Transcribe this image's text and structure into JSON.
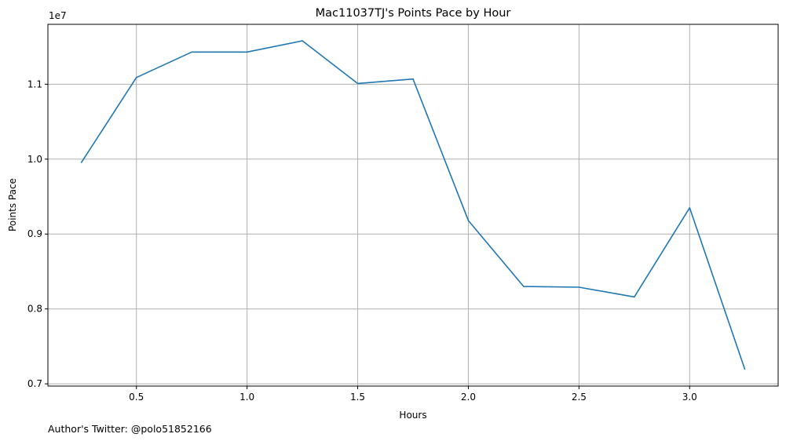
{
  "chart_data": {
    "type": "line",
    "title": "Mac11037TJ's Points Pace by Hour",
    "xlabel": "Hours",
    "ylabel": "Points Pace",
    "y_offset_text": "1e7",
    "grid": true,
    "xlim": [
      0.1,
      3.4
    ],
    "ylim": [
      6.97,
      11.8
    ],
    "x_ticks": [
      0.5,
      1.0,
      1.5,
      2.0,
      2.5,
      3.0
    ],
    "x_tick_labels": [
      "0.5",
      "1.0",
      "1.5",
      "2.0",
      "2.5",
      "3.0"
    ],
    "y_ticks": [
      0.7,
      0.8,
      0.9,
      1.0,
      1.1
    ],
    "y_tick_labels": [
      "0.7",
      "0.8",
      "0.9",
      "1.0",
      "1.1"
    ],
    "series": [
      {
        "color": "#1f77b4",
        "x": [
          0.25,
          0.5,
          0.75,
          1.0,
          1.25,
          1.5,
          1.75,
          2.0,
          2.25,
          2.5,
          2.75,
          3.0,
          3.25
        ],
        "y": [
          9950000,
          11090000,
          11430000,
          11430000,
          11580000,
          11010000,
          11070000,
          9180000,
          8300000,
          8290000,
          8160000,
          9350000,
          7190000
        ]
      }
    ]
  },
  "footer": {
    "text": "Author's Twitter: @polo51852166"
  }
}
